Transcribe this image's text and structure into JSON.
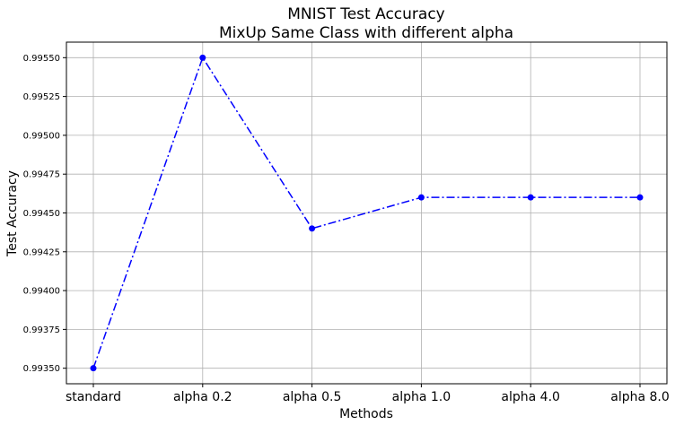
{
  "chart_data": {
    "type": "line",
    "title": "MNIST Test Accuracy",
    "subtitle": "MixUp Same Class with different alpha",
    "xlabel": "Methods",
    "ylabel": "Test Accuracy",
    "categories": [
      "standard",
      "alpha 0.2",
      "alpha 0.5",
      "alpha 1.0",
      "alpha 4.0",
      "alpha 8.0"
    ],
    "series": [
      {
        "values": [
          0.9935,
          0.9955,
          0.9944,
          0.9946,
          0.9946,
          0.9946
        ],
        "color": "#0000ff",
        "line_style": "dash-dot",
        "marker": "circle"
      }
    ],
    "yticks": [
      "0.99350",
      "0.99375",
      "0.99400",
      "0.99425",
      "0.99450",
      "0.99475",
      "0.99500",
      "0.99525",
      "0.99550"
    ],
    "ylim": [
      0.9934,
      0.9956
    ],
    "grid": true
  }
}
